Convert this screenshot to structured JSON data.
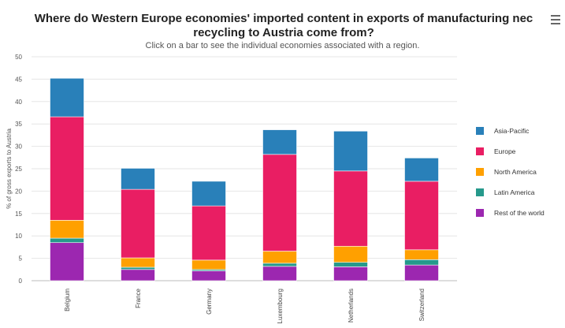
{
  "page": {
    "title": "Where do Western Europe economies' imported content in exports of manufacturing nec recycling to Austria come from?",
    "subtitle": "Click on a bar to see the individual economies associated with a region."
  },
  "menu": {
    "icon": "hamburger-menu-icon"
  },
  "chart_data": {
    "type": "bar",
    "stacked": true,
    "categories": [
      "Belgium",
      "France",
      "Germany",
      "Luxembourg",
      "Netherlands",
      "Switzerland"
    ],
    "series": [
      {
        "name": "Rest of the world",
        "color": "#9c27b0",
        "values": [
          8.5,
          2.5,
          2.2,
          3.2,
          3.1,
          3.5
        ]
      },
      {
        "name": "Latin America",
        "color": "#26998b",
        "values": [
          1.0,
          0.5,
          0.3,
          0.7,
          1.0,
          1.2
        ]
      },
      {
        "name": "North America",
        "color": "#ffa000",
        "values": [
          4.0,
          2.1,
          2.1,
          2.7,
          3.6,
          2.2
        ]
      },
      {
        "name": "Europe",
        "color": "#e91e63",
        "values": [
          23.1,
          15.3,
          12.1,
          21.6,
          16.8,
          15.3
        ]
      },
      {
        "name": "Asia-Pacific",
        "color": "#2980b9",
        "values": [
          8.6,
          4.7,
          5.5,
          5.5,
          8.9,
          5.2
        ]
      }
    ],
    "legend_order": [
      "Asia-Pacific",
      "Europe",
      "North America",
      "Latin America",
      "Rest of the world"
    ],
    "ylabel": "% of gross exports to Austria",
    "xlabel": "",
    "ylim": [
      0,
      50
    ],
    "yticks": [
      0,
      5,
      10,
      15,
      20,
      25,
      30,
      35,
      40,
      45,
      50
    ],
    "grid": true,
    "legend_position": "right"
  }
}
